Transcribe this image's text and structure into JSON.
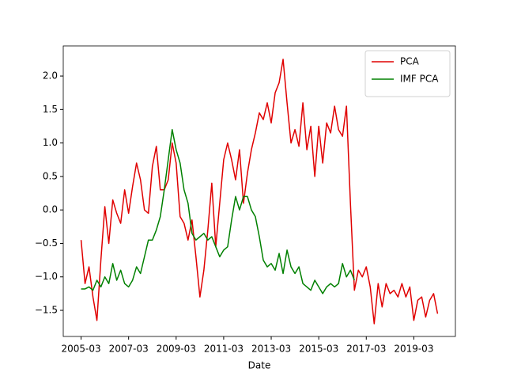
{
  "chart_data": {
    "type": "line",
    "xlabel": "Date",
    "x": [
      "2005-03",
      "2005-05",
      "2005-07",
      "2005-09",
      "2005-11",
      "2006-01",
      "2006-03",
      "2006-05",
      "2006-07",
      "2006-09",
      "2006-11",
      "2007-01",
      "2007-03",
      "2007-05",
      "2007-07",
      "2007-09",
      "2007-11",
      "2008-01",
      "2008-03",
      "2008-05",
      "2008-07",
      "2008-09",
      "2008-11",
      "2009-01",
      "2009-03",
      "2009-05",
      "2009-07",
      "2009-09",
      "2009-11",
      "2010-01",
      "2010-03",
      "2010-05",
      "2010-07",
      "2010-09",
      "2010-11",
      "2011-01",
      "2011-03",
      "2011-05",
      "2011-07",
      "2011-09",
      "2011-11",
      "2012-01",
      "2012-03",
      "2012-05",
      "2012-07",
      "2012-09",
      "2012-11",
      "2013-01",
      "2013-03",
      "2013-05",
      "2013-07",
      "2013-09",
      "2013-11",
      "2014-01",
      "2014-03",
      "2014-05",
      "2014-07",
      "2014-09",
      "2014-11",
      "2015-01",
      "2015-03",
      "2015-05",
      "2015-07",
      "2015-09",
      "2015-11",
      "2016-01",
      "2016-03",
      "2016-05",
      "2016-07",
      "2016-09",
      "2016-11",
      "2017-01",
      "2017-03",
      "2017-05",
      "2017-07",
      "2017-09",
      "2017-11",
      "2018-01",
      "2018-03",
      "2018-05",
      "2018-07",
      "2018-09",
      "2018-11",
      "2019-01",
      "2019-03",
      "2019-05",
      "2019-07",
      "2019-09",
      "2019-11",
      "2020-01",
      "2020-03"
    ],
    "series": [
      {
        "name": "PCA",
        "color": "#e00000",
        "values": [
          -0.45,
          -1.1,
          -0.85,
          -1.3,
          -1.65,
          -0.75,
          0.05,
          -0.5,
          0.15,
          -0.05,
          -0.2,
          0.3,
          -0.05,
          0.35,
          0.7,
          0.45,
          0.0,
          -0.05,
          0.65,
          0.95,
          0.3,
          0.3,
          0.45,
          1.0,
          0.7,
          -0.1,
          -0.2,
          -0.45,
          -0.15,
          -0.7,
          -1.3,
          -0.9,
          -0.3,
          0.4,
          -0.55,
          0.1,
          0.75,
          1.0,
          0.75,
          0.45,
          0.9,
          0.1,
          0.55,
          0.9,
          1.15,
          1.45,
          1.35,
          1.6,
          1.3,
          1.75,
          1.9,
          2.25,
          1.6,
          1.0,
          1.2,
          0.95,
          1.6,
          0.9,
          1.25,
          0.5,
          1.25,
          0.7,
          1.3,
          1.15,
          1.55,
          1.2,
          1.1,
          1.55,
          0.1,
          -1.2,
          -0.9,
          -1.0,
          -0.85,
          -1.15,
          -1.7,
          -1.1,
          -1.45,
          -1.1,
          -1.25,
          -1.2,
          -1.3,
          -1.1,
          -1.3,
          -1.15,
          -1.65,
          -1.35,
          -1.3,
          -1.6,
          -1.35,
          -1.25,
          -1.55
        ]
      },
      {
        "name": "IMF PCA",
        "color": "#008000",
        "values": [
          -1.18,
          -1.18,
          -1.15,
          -1.2,
          -1.05,
          -1.15,
          -1.0,
          -1.1,
          -0.8,
          -1.05,
          -0.9,
          -1.1,
          -1.15,
          -1.05,
          -0.85,
          -0.95,
          -0.7,
          -0.45,
          -0.45,
          -0.3,
          -0.1,
          0.3,
          0.75,
          1.2,
          0.9,
          0.7,
          0.3,
          0.1,
          -0.35,
          -0.45,
          -0.4,
          -0.35,
          -0.45,
          -0.4,
          -0.55,
          -0.7,
          -0.6,
          -0.55,
          -0.15,
          0.2,
          0.0,
          0.2,
          0.2,
          0.0,
          -0.1,
          -0.4,
          -0.75,
          -0.85,
          -0.8,
          -0.9,
          -0.65,
          -0.95,
          -0.6,
          -0.85,
          -0.95,
          -0.85,
          -1.1,
          -1.15,
          -1.2,
          -1.05,
          -1.15,
          -1.25,
          -1.15,
          -1.1,
          -1.15,
          -1.1,
          -0.8,
          -1.0,
          -0.9,
          -1.05,
          null,
          null,
          null,
          null,
          null,
          null,
          null,
          null,
          null,
          null,
          null,
          null,
          null,
          null,
          null,
          null,
          null,
          null,
          null,
          null,
          null
        ]
      }
    ],
    "xlim": [
      "2004-06",
      "2020-12"
    ],
    "xticks": [
      "2005-03",
      "2007-03",
      "2009-03",
      "2011-03",
      "2013-03",
      "2015-03",
      "2017-03",
      "2019-03"
    ],
    "ylim": [
      -1.89,
      2.45
    ],
    "yticks": [
      {
        "value": -1.5,
        "label": "−1.5"
      },
      {
        "value": -1.0,
        "label": "−1.0"
      },
      {
        "value": -0.5,
        "label": "−0.5"
      },
      {
        "value": 0.0,
        "label": "0.0"
      },
      0.5,
      {
        "value": 1.0,
        "label": "1.0"
      },
      1.5,
      {
        "value": 2.0,
        "label": "2.0"
      }
    ],
    "legend": "upper right"
  }
}
